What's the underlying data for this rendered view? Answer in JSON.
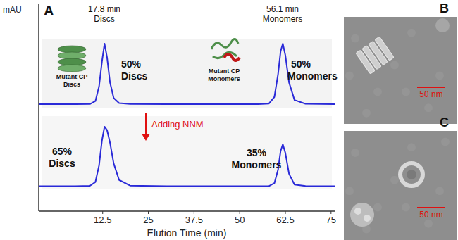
{
  "chart_data": {
    "type": "line",
    "x_label": "Elution Time (min)",
    "y_label": "mAU",
    "x": [
      -5,
      5,
      9,
      10.5,
      11.5,
      12.3,
      13,
      13.7,
      14.5,
      15.5,
      17,
      20,
      30,
      45,
      55,
      58,
      59.5,
      60.5,
      61.2,
      61.8,
      62.5,
      63.5,
      65,
      68,
      76
    ],
    "series": [
      {
        "color": "#2a2ad8",
        "values": [
          51.5,
          51.5,
          51.6,
          53,
          60,
          72,
          80.7,
          74,
          62,
          54.5,
          52,
          51.6,
          51.5,
          51.5,
          51.5,
          51.8,
          55,
          66,
          77,
          80.7,
          75,
          62,
          53.5,
          51.7,
          51.5
        ]
      },
      {
        "color": "#2a2ad8",
        "values": [
          12,
          12,
          12.2,
          14,
          22,
          34,
          40.7,
          39,
          33,
          23,
          15,
          12.3,
          12,
          12,
          12,
          12.1,
          13.5,
          20,
          29,
          32.2,
          28,
          18,
          12.8,
          12.1,
          12
        ]
      }
    ],
    "xlim": [
      -5,
      76
    ],
    "xticks": [
      12.5,
      25,
      37.5,
      50,
      62.5,
      75
    ],
    "ylim": [
      0,
      100
    ],
    "tick_labels": "x",
    "grid": false,
    "annotations": [
      {
        "text": "17.8 min"
      },
      {
        "text": "Discs"
      },
      {
        "text": "50%"
      },
      {
        "text": "Discs"
      },
      {
        "text": "56.1 min"
      },
      {
        "text": "Monomers"
      },
      {
        "text": "50%"
      },
      {
        "text": "Monomers"
      },
      {
        "text": "Mutant CP"
      },
      {
        "text": "Discs"
      },
      {
        "text": "Mutant CP"
      },
      {
        "text": "Monomers"
      },
      {
        "text": "Adding NNM",
        "color": "#e01010"
      },
      {
        "text": "65%"
      },
      {
        "text": "Discs"
      },
      {
        "text": "35%"
      },
      {
        "text": "Monomers"
      }
    ]
  },
  "figure": {
    "panels": [
      {
        "label": "A"
      },
      {
        "label": "B",
        "scale_bar": "50 nm"
      },
      {
        "label": "C",
        "scale_bar": "50 nm"
      }
    ]
  }
}
